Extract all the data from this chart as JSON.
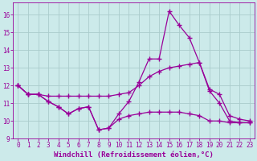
{
  "bg_color": "#cceaea",
  "grid_color": "#aacccc",
  "line_color": "#990099",
  "marker": "+",
  "markersize": 4,
  "linewidth": 0.9,
  "xlabel": "Windchill (Refroidissement éolien,°C)",
  "xlabel_fontsize": 6.5,
  "tick_fontsize": 5.5,
  "ylim": [
    9.0,
    16.7
  ],
  "xlim": [
    -0.5,
    23.5
  ],
  "yticks": [
    9,
    10,
    11,
    12,
    13,
    14,
    15,
    16
  ],
  "xticks": [
    0,
    1,
    2,
    3,
    4,
    5,
    6,
    7,
    8,
    9,
    10,
    11,
    12,
    13,
    14,
    15,
    16,
    17,
    18,
    19,
    20,
    21,
    22,
    23
  ],
  "line1_x": [
    0,
    1,
    2,
    3,
    4,
    5,
    6,
    7,
    8,
    9,
    10,
    11,
    12,
    13,
    14,
    15,
    16,
    17,
    18,
    19,
    20,
    21,
    22,
    23
  ],
  "line1_y": [
    12.0,
    11.5,
    11.5,
    11.1,
    10.8,
    10.4,
    10.7,
    10.8,
    9.5,
    9.6,
    10.4,
    11.1,
    12.2,
    13.5,
    13.5,
    16.2,
    15.4,
    14.7,
    13.3,
    11.7,
    11.0,
    10.0,
    9.9,
    9.9
  ],
  "line2_x": [
    0,
    1,
    2,
    3,
    4,
    5,
    6,
    7,
    8,
    9,
    10,
    11,
    12,
    13,
    14,
    15,
    16,
    17,
    18,
    19,
    20,
    21,
    22,
    23
  ],
  "line2_y": [
    12.0,
    11.5,
    11.5,
    11.4,
    11.4,
    11.4,
    11.4,
    11.4,
    11.4,
    11.4,
    11.5,
    11.6,
    12.0,
    12.5,
    12.8,
    13.0,
    13.1,
    13.2,
    13.3,
    11.8,
    11.5,
    10.3,
    10.1,
    10.0
  ],
  "line3_x": [
    0,
    1,
    2,
    3,
    4,
    5,
    6,
    7,
    8,
    9,
    10,
    11,
    12,
    13,
    14,
    15,
    16,
    17,
    18,
    19,
    20,
    21,
    22,
    23
  ],
  "line3_y": [
    12.0,
    11.5,
    11.5,
    11.1,
    10.8,
    10.4,
    10.7,
    10.8,
    9.5,
    9.6,
    10.1,
    10.3,
    10.4,
    10.5,
    10.5,
    10.5,
    10.5,
    10.4,
    10.3,
    10.0,
    10.0,
    9.9,
    9.9,
    9.9
  ]
}
